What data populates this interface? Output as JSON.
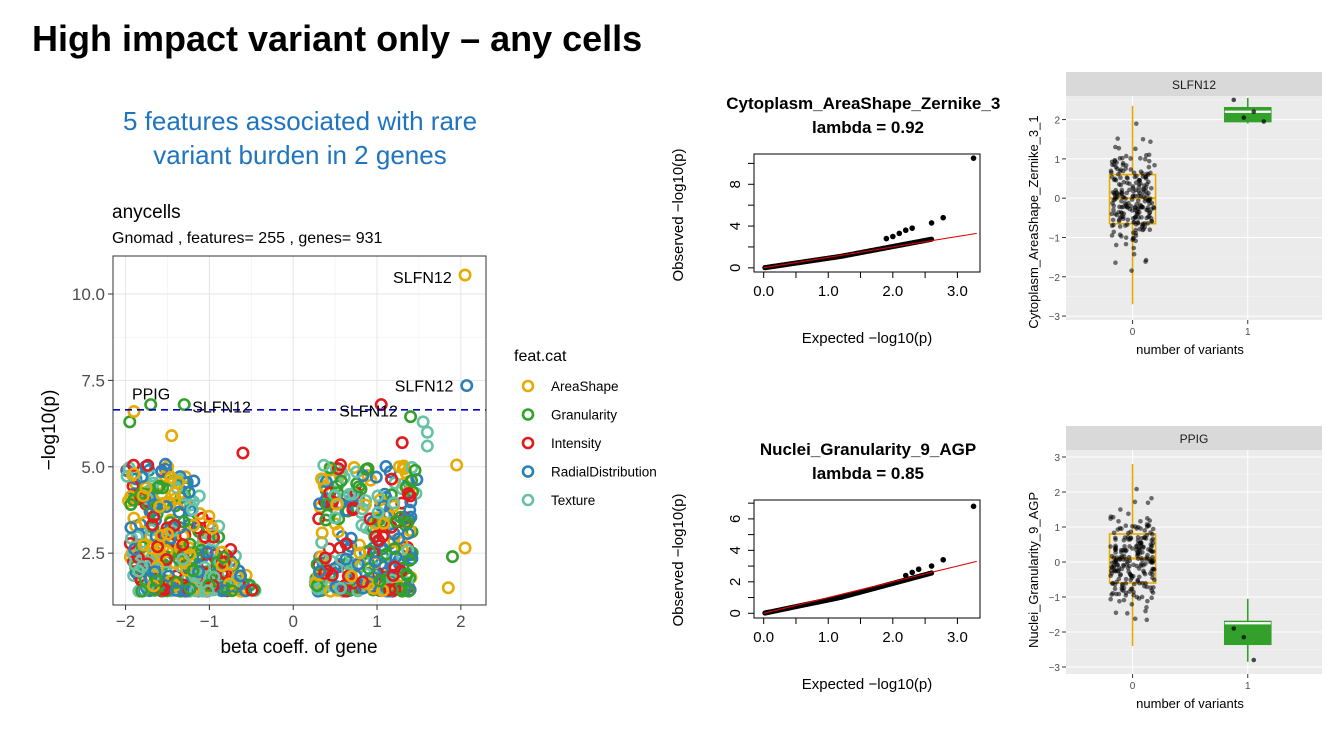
{
  "slide": {
    "title": "High impact variant only – any cells",
    "subtitle_line1": "5 features associated with rare",
    "subtitle_line2": "variant burden in 2 genes"
  },
  "chart_data": [
    {
      "id": "volcano",
      "type": "scatter",
      "title": "anycells",
      "subtitle": "Gnomad , features= 255 , genes= 931",
      "xlabel": "beta coeff. of gene",
      "ylabel": "−log10(p)",
      "xlim": [
        -2.15,
        2.3
      ],
      "ylim": [
        1.0,
        11.1
      ],
      "xticks": [
        -2,
        -1,
        0,
        1,
        2
      ],
      "xtick_labels": [
        "−2",
        "−1",
        "0",
        "1",
        "2"
      ],
      "yticks": [
        2.5,
        5.0,
        7.5,
        10.0
      ],
      "ytick_labels": [
        "2.5",
        "5.0",
        "7.5",
        "10.0"
      ],
      "threshold": 6.65,
      "grid": true,
      "legend": {
        "title": "feat.cat",
        "placement": "right",
        "entries": [
          {
            "name": "AreaShape",
            "color": "#E6AB02"
          },
          {
            "name": "Granularity",
            "color": "#33A02C"
          },
          {
            "name": "Intensity",
            "color": "#E31A1C"
          },
          {
            "name": "RadialDistribution",
            "color": "#2C7FB8"
          },
          {
            "name": "Texture",
            "color": "#66C2A5"
          }
        ]
      },
      "labeled_points": [
        {
          "label": "SLFN12",
          "x": 2.05,
          "y": 10.55,
          "cat": 0
        },
        {
          "label": "SLFN12",
          "x": 2.07,
          "y": 7.35,
          "cat": 3
        },
        {
          "label": "PPIG",
          "x": -1.9,
          "y": 6.6,
          "cat": 0
        },
        {
          "label": "SLFN12",
          "x": -1.3,
          "y": 6.8,
          "cat": 1
        },
        {
          "label": "SLFN12",
          "x": 1.05,
          "y": 6.8,
          "cat": 2
        }
      ],
      "extra_points": [
        {
          "x": -1.7,
          "y": 6.8,
          "cat": 1
        },
        {
          "x": -1.95,
          "y": 6.3,
          "cat": 1
        },
        {
          "x": 1.4,
          "y": 6.45,
          "cat": 1
        },
        {
          "x": 1.55,
          "y": 6.3,
          "cat": 4
        },
        {
          "x": 1.6,
          "y": 6.0,
          "cat": 4
        },
        {
          "x": 1.6,
          "y": 5.6,
          "cat": 4
        },
        {
          "x": 1.3,
          "y": 5.7,
          "cat": 2
        },
        {
          "x": -0.6,
          "y": 5.4,
          "cat": 2
        },
        {
          "x": 1.95,
          "y": 5.05,
          "cat": 0
        },
        {
          "x": 1.9,
          "y": 2.4,
          "cat": 1
        },
        {
          "x": 2.05,
          "y": 2.65,
          "cat": 0
        },
        {
          "x": 1.85,
          "y": 1.5,
          "cat": 0
        },
        {
          "x": -1.9,
          "y": 4.8,
          "cat": 0
        },
        {
          "x": -1.45,
          "y": 5.9,
          "cat": 0
        }
      ]
    },
    {
      "id": "qq1",
      "type": "scatter",
      "title_line1": "Cytoplasm_AreaShape_Zernike_3_",
      "title_line2": "lambda =  0.92",
      "xlabel": "Expected  −log10(p)",
      "ylabel": "Observed  −log10(p)",
      "xlim": [
        -0.15,
        3.35
      ],
      "ylim": [
        -0.4,
        10.9
      ],
      "xticks": [
        0,
        1,
        2,
        3
      ],
      "xtick_labels": [
        "0.0",
        "1.0",
        "2.0",
        "3.0"
      ],
      "yticks": [
        0,
        4,
        8
      ],
      "ytick_labels": [
        "0",
        "4",
        "8"
      ],
      "lambda": 0.92,
      "top_points": [
        {
          "x": 3.25,
          "y": 10.5
        },
        {
          "x": 2.78,
          "y": 4.8
        },
        {
          "x": 2.6,
          "y": 4.3
        },
        {
          "x": 2.3,
          "y": 3.8
        },
        {
          "x": 2.2,
          "y": 3.6
        },
        {
          "x": 2.1,
          "y": 3.3
        },
        {
          "x": 2.0,
          "y": 3.0
        },
        {
          "x": 1.9,
          "y": 2.8
        }
      ],
      "line_slope": 1.0
    },
    {
      "id": "qq2",
      "type": "scatter",
      "title_line1": "Nuclei_Granularity_9_AGP",
      "title_line2": "lambda =  0.85",
      "xlabel": "Expected  −log10(p)",
      "ylabel": "Observed  −log10(p)",
      "xlim": [
        -0.15,
        3.35
      ],
      "ylim": [
        -0.3,
        7.2
      ],
      "xticks": [
        0,
        1,
        2,
        3
      ],
      "xtick_labels": [
        "0.0",
        "1.0",
        "2.0",
        "3.0"
      ],
      "yticks": [
        0,
        2,
        4,
        6
      ],
      "ytick_labels": [
        "0",
        "2",
        "4",
        "6"
      ],
      "lambda": 0.85,
      "top_points": [
        {
          "x": 3.25,
          "y": 6.8
        },
        {
          "x": 2.78,
          "y": 3.4
        },
        {
          "x": 2.6,
          "y": 3.0
        },
        {
          "x": 2.4,
          "y": 2.8
        },
        {
          "x": 2.3,
          "y": 2.6
        },
        {
          "x": 2.2,
          "y": 2.4
        }
      ],
      "line_slope": 1.0
    },
    {
      "id": "box1",
      "type": "box",
      "facet": "SLFN12",
      "xlabel": "number of variants",
      "ylabel": "Cytoplasm_AreaShape_Zernike_3_1",
      "categories": [
        "0",
        "1"
      ],
      "ylim": [
        -3.1,
        2.6
      ],
      "yticks": [
        -3,
        -2,
        -1,
        0,
        1,
        2
      ],
      "ytick_labels": [
        "−3",
        "−2",
        "−1",
        "0",
        "1",
        "2"
      ],
      "boxes": [
        {
          "category": "0",
          "q1": -0.65,
          "median": 0.0,
          "q3": 0.6,
          "lower": -2.7,
          "upper": 2.35,
          "color": "#E6AB02"
        },
        {
          "category": "1",
          "q1": 1.95,
          "median": 2.2,
          "q3": 2.3,
          "lower": 1.9,
          "upper": 2.55,
          "color": "#33A02C"
        }
      ],
      "group1_points": [
        2.5,
        2.05,
        2.2,
        1.95
      ]
    },
    {
      "id": "box2",
      "type": "box",
      "facet": "PPIG",
      "xlabel": "number of variants",
      "ylabel": "Nuclei_Granularity_9_AGP",
      "categories": [
        "0",
        "1"
      ],
      "ylim": [
        -3.2,
        3.2
      ],
      "yticks": [
        -3,
        -2,
        -1,
        0,
        1,
        2,
        3
      ],
      "ytick_labels": [
        "−3",
        "−2",
        "−1",
        "0",
        "1",
        "2",
        "3"
      ],
      "boxes": [
        {
          "category": "0",
          "q1": -0.6,
          "median": 0.1,
          "q3": 0.8,
          "lower": -2.4,
          "upper": 2.8,
          "color": "#E6AB02"
        },
        {
          "category": "1",
          "q1": -2.35,
          "median": -1.75,
          "q3": -1.7,
          "lower": -2.85,
          "upper": -1.05,
          "color": "#33A02C"
        }
      ],
      "group1_points": [
        -1.9,
        -2.15,
        -2.8
      ]
    }
  ]
}
